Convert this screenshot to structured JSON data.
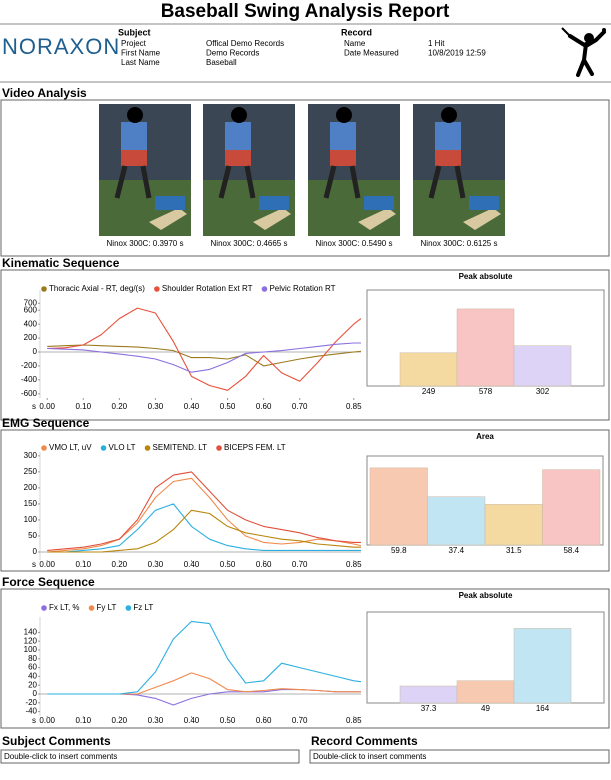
{
  "title": "Baseball Swing Analysis Report",
  "header": {
    "logo": "NORAXON",
    "subject": {
      "heading": "Subject",
      "fields": [
        [
          "Project",
          "Offical Demo Records"
        ],
        [
          "First Name",
          "Demo Records"
        ],
        [
          "Last Name",
          "Baseball"
        ]
      ]
    },
    "record": {
      "heading": "Record",
      "fields": [
        [
          "Name",
          "1 Hit"
        ],
        [
          "Date Measured",
          "10/8/2019 12:59"
        ]
      ]
    }
  },
  "video": {
    "heading": "Video Analysis",
    "captions": [
      "Ninox 300C: 0.3970 s",
      "Ninox 300C: 0.4665 s",
      "Ninox 300C: 0.5490 s",
      "Ninox 300C: 0.6125 s"
    ]
  },
  "sections": [
    "Kinematic Sequence",
    "EMG Sequence",
    "Force Sequence"
  ],
  "chart_data": [
    {
      "type": "line",
      "xlabel": "s",
      "x": [
        0,
        0.05,
        0.1,
        0.15,
        0.2,
        0.25,
        0.3,
        0.35,
        0.4,
        0.45,
        0.5,
        0.55,
        0.6,
        0.65,
        0.7,
        0.75,
        0.8,
        0.85,
        0.87
      ],
      "xlim": [
        -0.02,
        0.87
      ],
      "xticks": [
        {
          "value": 0,
          "label": "0.00"
        },
        {
          "value": 0.1,
          "label": "0.10"
        },
        {
          "value": 0.2,
          "label": "0.20"
        },
        {
          "value": 0.3,
          "label": "0.30"
        },
        {
          "value": 0.4,
          "label": "0.40"
        },
        {
          "value": 0.5,
          "label": "0.50"
        },
        {
          "value": 0.6,
          "label": "0.60"
        },
        {
          "value": 0.7,
          "label": "0.70"
        },
        {
          "value": 0.85,
          "label": "0.85"
        }
      ],
      "ylim": [
        -660,
        890
      ],
      "yticks": [
        700,
        600,
        400,
        200,
        0,
        -200,
        -400,
        -600
      ],
      "series": [
        {
          "name": "Thoracic Axial - RT, deg/(s)",
          "color": "#9b7a1e",
          "values": [
            80,
            90,
            100,
            90,
            80,
            70,
            50,
            20,
            -80,
            -80,
            -100,
            -40,
            -200,
            -150,
            -100,
            -60,
            -30,
            0,
            10
          ]
        },
        {
          "name": "Shoulder Rotation Ext RT",
          "color": "#e8503a",
          "values": [
            50,
            60,
            100,
            250,
            480,
            630,
            560,
            150,
            -350,
            -480,
            -550,
            -350,
            -50,
            -300,
            -420,
            -150,
            150,
            400,
            480
          ]
        },
        {
          "name": "Pelvic Rotation RT",
          "color": "#8b6fe0",
          "values": [
            50,
            40,
            30,
            0,
            -30,
            -60,
            -100,
            -180,
            -290,
            -250,
            -150,
            -20,
            0,
            20,
            50,
            80,
            110,
            130,
            130
          ]
        }
      ]
    },
    {
      "type": "bar",
      "title": "Peak absolute",
      "ylim": [
        0,
        720
      ],
      "values": [
        249,
        578,
        302
      ],
      "colors": [
        "#f4d9a0",
        "#f8c4c4",
        "#dcd3f6"
      ]
    },
    {
      "type": "line",
      "xlabel": "s",
      "x": [
        0,
        0.05,
        0.1,
        0.15,
        0.2,
        0.25,
        0.3,
        0.35,
        0.4,
        0.45,
        0.5,
        0.55,
        0.6,
        0.65,
        0.7,
        0.75,
        0.8,
        0.85,
        0.87
      ],
      "xlim": [
        -0.02,
        0.87
      ],
      "xticks": [
        {
          "value": 0,
          "label": "0.00"
        },
        {
          "value": 0.1,
          "label": "0.10"
        },
        {
          "value": 0.2,
          "label": "0.20"
        },
        {
          "value": 0.3,
          "label": "0.30"
        },
        {
          "value": 0.4,
          "label": "0.40"
        },
        {
          "value": 0.5,
          "label": "0.50"
        },
        {
          "value": 0.6,
          "label": "0.60"
        },
        {
          "value": 0.7,
          "label": "0.70"
        },
        {
          "value": 0.85,
          "label": "0.85"
        }
      ],
      "ylim": [
        -25,
        312
      ],
      "yticks": [
        300,
        250,
        200,
        150,
        100,
        50,
        0
      ],
      "series": [
        {
          "name": "VMO LT, uV",
          "color": "#f08a4b",
          "values": [
            0,
            5,
            10,
            20,
            40,
            90,
            170,
            220,
            230,
            170,
            100,
            50,
            30,
            25,
            30,
            40,
            35,
            25,
            20
          ]
        },
        {
          "name": "VLO LT",
          "color": "#2ab0e0",
          "values": [
            0,
            0,
            5,
            10,
            20,
            70,
            130,
            150,
            80,
            40,
            20,
            10,
            5,
            5,
            5,
            5,
            5,
            5,
            5
          ]
        },
        {
          "name": "SEMITEND. LT",
          "color": "#b8860b",
          "values": [
            0,
            0,
            0,
            0,
            5,
            10,
            30,
            70,
            130,
            120,
            80,
            60,
            50,
            40,
            35,
            25,
            20,
            15,
            15
          ]
        },
        {
          "name": "BICEPS FEM. LT",
          "color": "#e0503a",
          "values": [
            5,
            10,
            15,
            25,
            40,
            100,
            200,
            240,
            250,
            190,
            130,
            100,
            80,
            70,
            60,
            45,
            35,
            30,
            30
          ]
        }
      ]
    },
    {
      "type": "bar",
      "title": "Area",
      "ylim": [
        0,
        69
      ],
      "values": [
        59.8,
        37.4,
        31.5,
        58.4
      ],
      "colors": [
        "#f7c9b0",
        "#c2e5f4",
        "#f4d9a0",
        "#f8c4c4"
      ]
    },
    {
      "type": "line",
      "xlabel": "s",
      "x": [
        0,
        0.05,
        0.1,
        0.15,
        0.2,
        0.25,
        0.3,
        0.35,
        0.4,
        0.45,
        0.5,
        0.55,
        0.6,
        0.65,
        0.7,
        0.75,
        0.8,
        0.85,
        0.87
      ],
      "xlim": [
        -0.02,
        0.87
      ],
      "xticks": [
        {
          "value": 0,
          "label": "0.00"
        },
        {
          "value": 0.1,
          "label": "0.10"
        },
        {
          "value": 0.2,
          "label": "0.20"
        },
        {
          "value": 0.3,
          "label": "0.30"
        },
        {
          "value": 0.4,
          "label": "0.40"
        },
        {
          "value": 0.5,
          "label": "0.50"
        },
        {
          "value": 0.6,
          "label": "0.60"
        },
        {
          "value": 0.7,
          "label": "0.70"
        },
        {
          "value": 0.85,
          "label": "0.85"
        }
      ],
      "ylim": [
        -50,
        175
      ],
      "yticks": [
        140,
        120,
        100,
        80,
        60,
        40,
        20,
        0,
        -20,
        -40
      ],
      "series": [
        {
          "name": "Fx LT, %",
          "color": "#8b6fe0",
          "values": [
            0,
            0,
            0,
            0,
            0,
            -2,
            -10,
            -25,
            -10,
            0,
            5,
            5,
            5,
            10,
            10,
            8,
            5,
            5,
            5
          ]
        },
        {
          "name": "Fy LT",
          "color": "#f08a4b",
          "values": [
            0,
            0,
            0,
            0,
            0,
            0,
            15,
            30,
            48,
            35,
            10,
            5,
            8,
            12,
            10,
            8,
            5,
            5,
            5
          ]
        },
        {
          "name": "Fz LT",
          "color": "#2ab0e0",
          "values": [
            0,
            0,
            0,
            0,
            0,
            5,
            50,
            125,
            165,
            160,
            80,
            25,
            30,
            70,
            60,
            50,
            40,
            30,
            28
          ]
        }
      ]
    },
    {
      "type": "bar",
      "title": "Peak absolute",
      "ylim": [
        0,
        200
      ],
      "values": [
        37.3,
        49,
        164
      ],
      "colors": [
        "#dcd3f6",
        "#f7c9b0",
        "#c2e5f4"
      ]
    }
  ],
  "comments": [
    {
      "heading": "Subject Comments",
      "text": "Double-click to insert comments"
    },
    {
      "heading": "Record Comments",
      "text": "Double-click to insert comments"
    }
  ]
}
